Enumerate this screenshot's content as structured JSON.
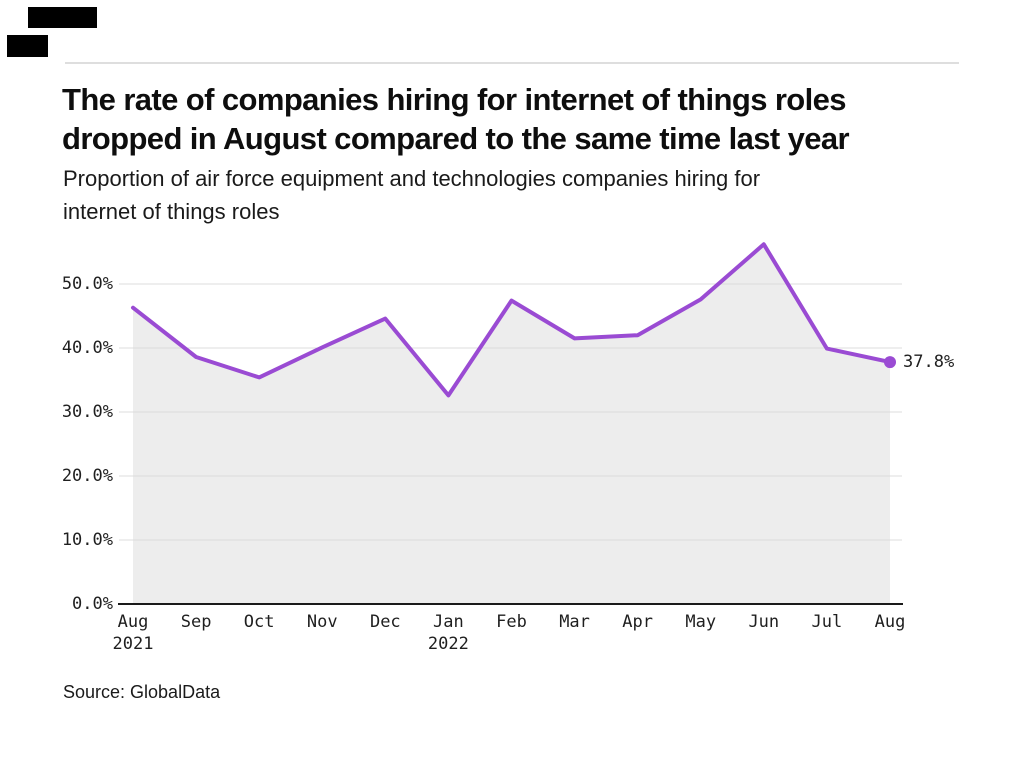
{
  "header": {
    "title_line1": "The rate of companies hiring for internet of things roles",
    "title_line2": "dropped in August compared to the same time last year",
    "subtitle_line1": "Proportion of air force equipment and technologies companies hiring for",
    "subtitle_line2": "internet of things roles"
  },
  "logo": {
    "icon": "redacted-publisher-logo-blocks",
    "color": "#000000"
  },
  "footer": {
    "source": "Source: GlobalData"
  },
  "chart_data": {
    "type": "area",
    "title": "The rate of companies hiring for internet of things roles dropped in August compared to the same time last year",
    "subtitle": "Proportion of air force equipment and technologies companies hiring for internet of things roles",
    "categories": [
      "Aug 2021",
      "Sep 2021",
      "Oct 2021",
      "Nov 2021",
      "Dec 2021",
      "Jan 2022",
      "Feb 2022",
      "Mar 2022",
      "Apr 2022",
      "May 2022",
      "Jun 2022",
      "Jul 2022",
      "Aug 2022"
    ],
    "values": [
      46.3,
      38.6,
      35.4,
      40.1,
      44.6,
      32.6,
      47.4,
      41.5,
      42.0,
      47.6,
      56.2,
      39.9,
      37.8
    ],
    "unit": "%",
    "end_label": "37.8%",
    "x_ticks": [
      {
        "label": "Aug",
        "sub": "2021"
      },
      {
        "label": "Sep"
      },
      {
        "label": "Oct"
      },
      {
        "label": "Nov"
      },
      {
        "label": "Dec"
      },
      {
        "label": "Jan",
        "sub": "2022"
      },
      {
        "label": "Feb"
      },
      {
        "label": "Mar"
      },
      {
        "label": "Apr"
      },
      {
        "label": "May"
      },
      {
        "label": "Jun"
      },
      {
        "label": "Jul"
      },
      {
        "label": "Aug"
      }
    ],
    "y_ticks": [
      {
        "value": 0,
        "label": "0.0%"
      },
      {
        "value": 10,
        "label": "10.0%"
      },
      {
        "value": 20,
        "label": "20.0%"
      },
      {
        "value": 30,
        "label": "30.0%"
      },
      {
        "value": 40,
        "label": "40.0%"
      },
      {
        "value": 50,
        "label": "50.0%"
      }
    ],
    "ylim": [
      0,
      57.8
    ],
    "grid": true,
    "legend": false,
    "line_color": "#9a4bd3",
    "marker_color": "#9a4bd3",
    "fill_color": "#ededed",
    "gridline_color": "#dcdcdc",
    "axis_color": "#1a1a1a",
    "source": "Source: GlobalData"
  }
}
